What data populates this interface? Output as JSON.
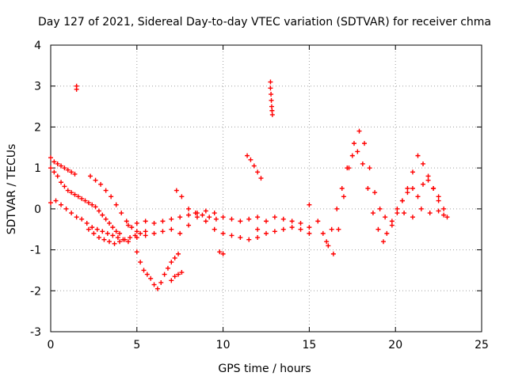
{
  "chart_data": {
    "type": "scatter",
    "title": "Day 127 of 2021, Sidereal Day-to-day VTEC variation (SDTVAR) for receiver chma",
    "xlabel": "GPS time / hours",
    "ylabel": "SDTVAR / TECUs",
    "xlim": [
      0,
      25
    ],
    "ylim": [
      -3,
      4
    ],
    "xticks": [
      0,
      5,
      10,
      15,
      20,
      25
    ],
    "yticks": [
      -3,
      -2,
      -1,
      0,
      1,
      2,
      3,
      4
    ],
    "xtick_labels": [
      "0",
      "5",
      "10",
      "15",
      "20",
      "25"
    ],
    "ytick_labels": [
      "-3",
      "-2",
      "-1",
      "0",
      "1",
      "2",
      "3",
      "4"
    ],
    "grid": true,
    "marker": "plus",
    "color": "#ff0000",
    "series": [
      {
        "name": "arc-early-top",
        "x": [
          0.0,
          0.2,
          0.4,
          0.6,
          0.8,
          1.0,
          1.2,
          1.4
        ],
        "y": [
          1.25,
          1.15,
          1.1,
          1.05,
          1.0,
          0.95,
          0.9,
          0.85
        ]
      },
      {
        "name": "arc-early-mid",
        "x": [
          0.0,
          0.2,
          0.4,
          0.6,
          0.8,
          1.0,
          1.2,
          1.4,
          1.6,
          1.8,
          2.0,
          2.2,
          2.4,
          2.6,
          2.8,
          3.0,
          3.2,
          3.4,
          3.6,
          3.8,
          4.0
        ],
        "y": [
          1.0,
          0.9,
          0.8,
          0.65,
          0.55,
          0.45,
          0.4,
          0.35,
          0.3,
          0.25,
          0.2,
          0.15,
          0.1,
          0.05,
          -0.05,
          -0.15,
          -0.25,
          -0.35,
          -0.45,
          -0.55,
          -0.6
        ]
      },
      {
        "name": "arc-early-low",
        "x": [
          0.0,
          0.3,
          0.6,
          0.9,
          1.2,
          1.5,
          1.8,
          2.1,
          2.4,
          2.7,
          3.0,
          3.3,
          3.6,
          3.9,
          4.2,
          4.5
        ],
        "y": [
          0.15,
          0.2,
          0.1,
          0.0,
          -0.1,
          -0.2,
          -0.25,
          -0.35,
          -0.45,
          -0.5,
          -0.55,
          -0.6,
          -0.65,
          -0.7,
          -0.75,
          -0.8
        ]
      },
      {
        "name": "arc-morning-a",
        "x": [
          2.3,
          2.6,
          2.9,
          3.2,
          3.5,
          3.8,
          4.1,
          4.4,
          4.7,
          5.0
        ],
        "y": [
          0.8,
          0.7,
          0.6,
          0.45,
          0.3,
          0.1,
          -0.1,
          -0.3,
          -0.45,
          -0.55
        ]
      },
      {
        "name": "arc-morning-b",
        "x": [
          2.2,
          2.5,
          2.8,
          3.1,
          3.4,
          3.7,
          4.0,
          4.3,
          4.6,
          4.9,
          5.2,
          5.5
        ],
        "y": [
          -0.5,
          -0.6,
          -0.7,
          -0.75,
          -0.8,
          -0.85,
          -0.8,
          -0.75,
          -0.7,
          -0.65,
          -0.6,
          -0.55
        ]
      },
      {
        "name": "arc-midday-dip",
        "x": [
          5.0,
          5.2,
          5.4,
          5.6,
          5.8,
          6.0,
          6.2,
          6.4,
          6.6,
          6.8,
          7.0,
          7.2,
          7.4
        ],
        "y": [
          -1.05,
          -1.3,
          -1.5,
          -1.6,
          -1.7,
          -1.85,
          -1.95,
          -1.8,
          -1.6,
          -1.45,
          -1.3,
          -1.2,
          -1.1
        ]
      },
      {
        "name": "arc-midday-tail",
        "x": [
          7.0,
          7.2,
          7.4,
          7.6
        ],
        "y": [
          -1.75,
          -1.65,
          -1.6,
          -1.55
        ]
      },
      {
        "name": "arc-mid-1",
        "x": [
          4.5,
          5.0,
          5.5,
          6.0,
          6.5,
          7.0,
          7.5,
          8.0,
          8.5,
          9.0,
          9.5,
          10.0,
          10.5,
          11.0,
          11.5,
          12.0
        ],
        "y": [
          -0.4,
          -0.35,
          -0.3,
          -0.35,
          -0.3,
          -0.25,
          -0.2,
          -0.15,
          -0.1,
          -0.05,
          -0.1,
          -0.2,
          -0.25,
          -0.3,
          -0.25,
          -0.2
        ]
      },
      {
        "name": "arc-mid-2",
        "x": [
          5.0,
          5.5,
          6.0,
          6.5,
          7.0,
          7.5,
          8.0,
          8.5,
          9.0,
          9.5,
          10.0,
          10.5,
          11.0,
          11.5,
          12.0
        ],
        "y": [
          -0.7,
          -0.65,
          -0.6,
          -0.55,
          -0.5,
          -0.6,
          -0.4,
          -0.2,
          -0.3,
          -0.5,
          -0.6,
          -0.65,
          -0.7,
          -0.75,
          -0.7
        ]
      },
      {
        "name": "arc-mid-3",
        "x": [
          7.3,
          7.6,
          8.0,
          8.4,
          8.8,
          9.2,
          9.6
        ],
        "y": [
          0.45,
          0.3,
          0.0,
          -0.1,
          -0.15,
          -0.2,
          -0.25
        ]
      },
      {
        "name": "arc-mid-4",
        "x": [
          9.8,
          10.0
        ],
        "y": [
          -1.05,
          -1.1
        ]
      },
      {
        "name": "arc-noon",
        "x": [
          11.4,
          11.6,
          11.8,
          12.0,
          12.2
        ],
        "y": [
          1.3,
          1.2,
          1.05,
          0.9,
          0.75
        ]
      },
      {
        "name": "arc-afternoon",
        "x": [
          12.0,
          12.5,
          13.0,
          13.5,
          14.0,
          14.5,
          15.0
        ],
        "y": [
          -0.5,
          -0.6,
          -0.55,
          -0.5,
          -0.45,
          -0.5,
          -0.6
        ]
      },
      {
        "name": "arc-afternoon-2",
        "x": [
          12.5,
          13.0,
          13.5,
          14.0,
          14.5,
          15.0
        ],
        "y": [
          -0.3,
          -0.2,
          -0.25,
          -0.3,
          -0.35,
          -0.45
        ]
      },
      {
        "name": "arc-peak-1",
        "x": [
          15.5,
          15.8,
          16.1,
          16.4,
          16.7,
          17.0,
          17.3,
          17.6,
          17.9,
          18.2,
          18.5,
          18.8,
          19.1,
          19.4
        ],
        "y": [
          -0.3,
          -0.6,
          -0.9,
          -1.1,
          -0.5,
          0.3,
          1.0,
          1.6,
          1.9,
          1.6,
          1.0,
          0.4,
          0.0,
          -0.2
        ]
      },
      {
        "name": "arc-peak-2",
        "x": [
          16.0,
          16.3,
          16.6,
          16.9,
          17.2,
          17.5,
          17.8,
          18.1,
          18.4,
          18.7,
          19.0,
          19.3
        ],
        "y": [
          -0.8,
          -0.5,
          0.0,
          0.5,
          1.0,
          1.3,
          1.4,
          1.1,
          0.5,
          -0.1,
          -0.5,
          -0.8
        ]
      },
      {
        "name": "arc-late-1",
        "x": [
          19.5,
          19.8,
          20.1,
          20.4,
          20.7,
          21.0,
          21.3,
          21.6,
          21.9,
          22.2,
          22.5
        ],
        "y": [
          -0.6,
          -0.4,
          -0.1,
          0.2,
          0.5,
          0.9,
          1.3,
          1.1,
          0.8,
          0.5,
          0.2
        ]
      },
      {
        "name": "arc-late-2",
        "x": [
          19.8,
          20.1,
          20.4,
          20.7,
          21.0,
          21.3,
          21.6,
          21.9,
          22.2,
          22.5,
          22.8,
          23.0
        ],
        "y": [
          -0.3,
          0.0,
          0.2,
          0.4,
          0.5,
          0.3,
          0.6,
          0.7,
          0.5,
          0.3,
          0.0,
          -0.2
        ]
      },
      {
        "name": "arc-late-3",
        "x": [
          20.5,
          21.0,
          21.5,
          22.0,
          22.5,
          22.8
        ],
        "y": [
          -0.1,
          -0.2,
          0.0,
          -0.1,
          -0.05,
          -0.15
        ]
      },
      {
        "name": "outlier-early",
        "x": [
          1.5,
          1.5
        ],
        "y": [
          3.0,
          2.92
        ]
      },
      {
        "name": "outlier-noon",
        "x": [
          12.75,
          12.75,
          12.78,
          12.8,
          12.82,
          12.84,
          12.86
        ],
        "y": [
          3.1,
          2.95,
          2.8,
          2.65,
          2.5,
          2.4,
          2.3
        ]
      },
      {
        "name": "outlier-15",
        "x": [
          15.0
        ],
        "y": [
          0.1
        ]
      }
    ]
  }
}
